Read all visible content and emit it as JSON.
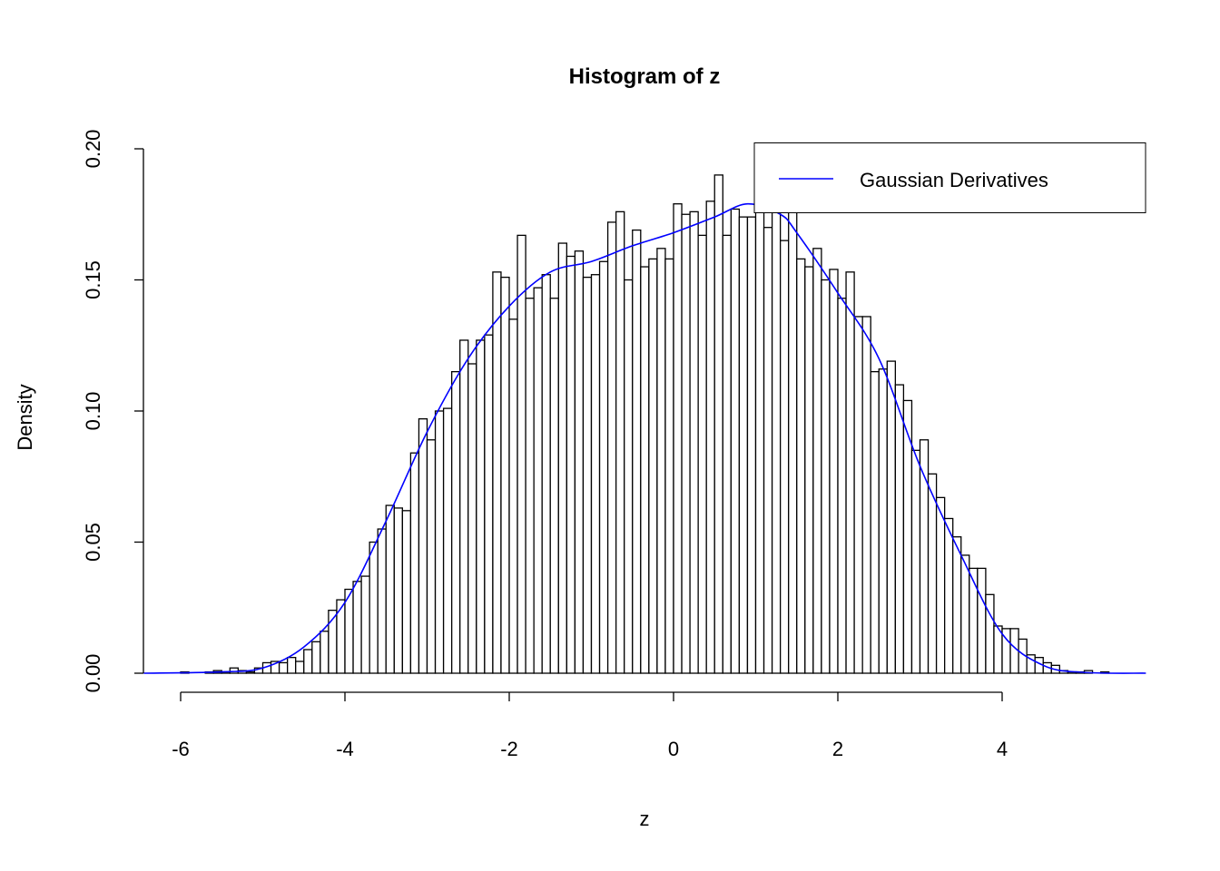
{
  "chart_data": {
    "type": "bar",
    "title": "Histogram of z",
    "xlabel": "z",
    "ylabel": "Density",
    "xlim": [
      -6.45,
      5.75
    ],
    "ylim": [
      0,
      0.2
    ],
    "grid": false,
    "x_ticks": [
      -6,
      -4,
      -2,
      0,
      2,
      4
    ],
    "x_tick_labels": [
      "-6",
      "-4",
      "-2",
      "0",
      "2",
      "4"
    ],
    "y_ticks": [
      0,
      0.05,
      0.1,
      0.15,
      0.2
    ],
    "y_tick_labels": [
      "0.00",
      "0.05",
      "0.10",
      "0.15",
      "0.20"
    ],
    "bin_start": -6.0,
    "bin_width": 0.1,
    "densities": [
      0.0005,
      0,
      0,
      0.0005,
      0.001,
      0.0005,
      0.002,
      0.001,
      0.0005,
      0.002,
      0.004,
      0.0045,
      0.004,
      0.006,
      0.0045,
      0.009,
      0.012,
      0.016,
      0.024,
      0.028,
      0.032,
      0.035,
      0.037,
      0.05,
      0.055,
      0.064,
      0.063,
      0.062,
      0.084,
      0.097,
      0.089,
      0.1,
      0.101,
      0.115,
      0.127,
      0.118,
      0.127,
      0.129,
      0.153,
      0.151,
      0.135,
      0.167,
      0.143,
      0.147,
      0.152,
      0.143,
      0.164,
      0.159,
      0.161,
      0.151,
      0.152,
      0.157,
      0.172,
      0.176,
      0.15,
      0.169,
      0.155,
      0.158,
      0.162,
      0.158,
      0.179,
      0.175,
      0.176,
      0.167,
      0.18,
      0.19,
      0.167,
      0.177,
      0.174,
      0.174,
      0.179,
      0.17,
      0.176,
      0.165,
      0.176,
      0.158,
      0.155,
      0.162,
      0.15,
      0.154,
      0.143,
      0.153,
      0.136,
      0.136,
      0.115,
      0.116,
      0.119,
      0.11,
      0.104,
      0.085,
      0.089,
      0.076,
      0.067,
      0.059,
      0.052,
      0.045,
      0.04,
      0.04,
      0.03,
      0.018,
      0.017,
      0.017,
      0.013,
      0.007,
      0.006,
      0.004,
      0.003,
      0.001,
      0.0005,
      0.0005,
      0.001,
      0,
      0.0005
    ],
    "series": [
      {
        "name": "Gaussian Derivatives",
        "type": "line",
        "color": "#0000ff",
        "x": [
          -6.45,
          -5.5,
          -5.0,
          -4.5,
          -4.0,
          -3.5,
          -3.0,
          -2.5,
          -2.0,
          -1.5,
          -1.0,
          -0.5,
          0.0,
          0.5,
          0.9,
          1.3,
          1.5,
          2.0,
          2.5,
          3.0,
          3.5,
          4.0,
          4.5,
          5.0,
          5.75
        ],
        "y": [
          0,
          0.0005,
          0.002,
          0.01,
          0.027,
          0.058,
          0.092,
          0.12,
          0.14,
          0.153,
          0.157,
          0.163,
          0.168,
          0.174,
          0.179,
          0.175,
          0.168,
          0.145,
          0.12,
          0.079,
          0.045,
          0.015,
          0.003,
          0.0003,
          0
        ]
      }
    ],
    "legend": {
      "position": "top-right",
      "entries": [
        "Gaussian Derivatives"
      ]
    },
    "bar_fill": "#ffffff",
    "bar_stroke": "#000000"
  }
}
